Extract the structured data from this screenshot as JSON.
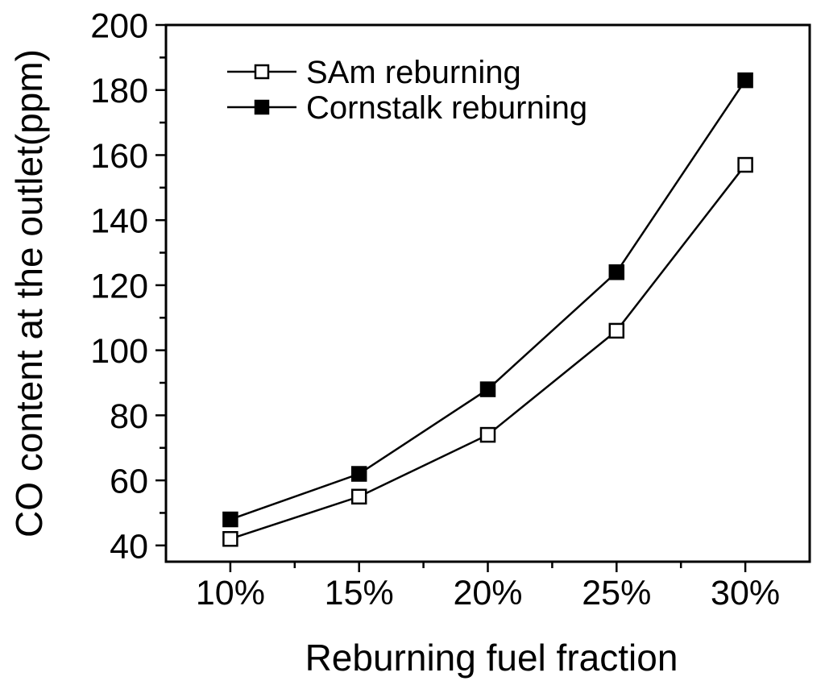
{
  "canvas": {
    "background": "#ffffff",
    "ink": "#000000"
  },
  "chart_data": {
    "type": "line",
    "title": "",
    "xlabel": "Reburning fuel fraction",
    "ylabel": "CO content at the outlet(ppm)",
    "x_tick_labels": [
      "10%",
      "15%",
      "20%",
      "25%",
      "30%"
    ],
    "x_values": [
      10,
      15,
      20,
      25,
      30
    ],
    "xlim": [
      7.5,
      32.5
    ],
    "ylim": [
      35,
      200
    ],
    "y_major_ticks": [
      40,
      60,
      80,
      100,
      120,
      140,
      160,
      180,
      200
    ],
    "y_minor_ticks": [
      50,
      70,
      90,
      110,
      130,
      150,
      170,
      190
    ],
    "x_minor_ticks": [
      12.5,
      17.5,
      22.5,
      27.5
    ],
    "grid": false,
    "legend_position": "inside-top-left",
    "series": [
      {
        "name": "SAm reburning",
        "marker": "open-square",
        "color": "#000000",
        "values": [
          42,
          55,
          74,
          106,
          157
        ]
      },
      {
        "name": "Cornstalk reburning",
        "marker": "filled-square",
        "color": "#000000",
        "values": [
          48,
          62,
          88,
          124,
          183
        ]
      }
    ]
  }
}
